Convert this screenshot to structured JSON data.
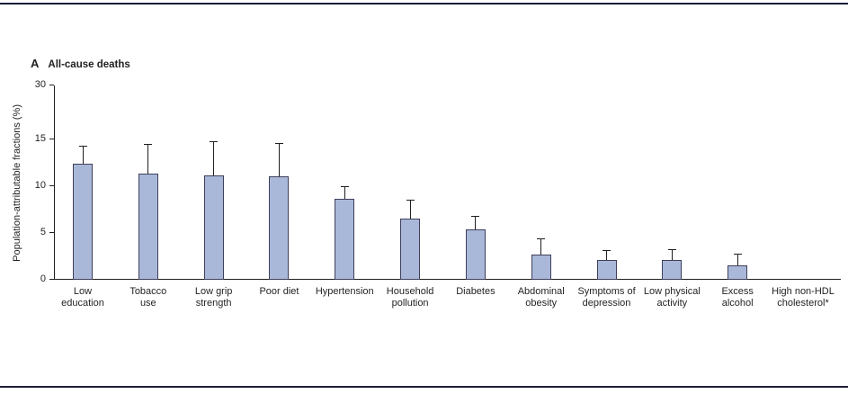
{
  "figure": {
    "panel_label": "A",
    "title": "All-cause deaths",
    "ylabel": "Population-attributable fractions (%)"
  },
  "chart_data": {
    "type": "bar",
    "title": "All-cause deaths",
    "panel": "A",
    "xlabel": "",
    "ylabel": "Population-attributable fractions (%)",
    "yticks": [
      0,
      5,
      10,
      15,
      30
    ],
    "ylim": [
      0,
      30
    ],
    "axis_break": "compressed axis segment between 15 and 30",
    "grid": "off",
    "legend": "none",
    "error_bars": "upper 95% CI whiskers with caps",
    "bars": [
      {
        "category": "Low education",
        "label_lines": [
          "Low",
          "education"
        ],
        "value": 12.4,
        "upper_ci": 14.2
      },
      {
        "category": "Tobacco use",
        "label_lines": [
          "Tobacco",
          "use"
        ],
        "value": 11.3,
        "upper_ci": 14.4
      },
      {
        "category": "Low grip strength",
        "label_lines": [
          "Low grip",
          "strength"
        ],
        "value": 11.2,
        "upper_ci": 14.7
      },
      {
        "category": "Poor diet",
        "label_lines": [
          "Poor diet"
        ],
        "value": 11.1,
        "upper_ci": 14.5
      },
      {
        "category": "Hypertension",
        "label_lines": [
          "Hypertension"
        ],
        "value": 8.7,
        "upper_ci": 9.9
      },
      {
        "category": "Household pollution",
        "label_lines": [
          "Household",
          "pollution"
        ],
        "value": 6.5,
        "upper_ci": 8.5
      },
      {
        "category": "Diabetes",
        "label_lines": [
          "Diabetes"
        ],
        "value": 5.4,
        "upper_ci": 6.7
      },
      {
        "category": "Abdominal obesity",
        "label_lines": [
          "Abdominal",
          "obesity"
        ],
        "value": 2.7,
        "upper_ci": 4.3
      },
      {
        "category": "Symptoms of depression",
        "label_lines": [
          "Symptoms of",
          "depression"
        ],
        "value": 2.1,
        "upper_ci": 3.1
      },
      {
        "category": "Low physical activity",
        "label_lines": [
          "Low physical",
          "activity"
        ],
        "value": 2.1,
        "upper_ci": 3.2
      },
      {
        "category": "Excess alcohol",
        "label_lines": [
          "Excess",
          "alcohol"
        ],
        "value": 1.5,
        "upper_ci": 2.7
      },
      {
        "category": "High non-HDL cholesterol*",
        "label_lines": [
          "High non-HDL",
          "cholesterol*"
        ],
        "value": 0,
        "upper_ci": null
      }
    ],
    "colors": {
      "bar_fill": "#a9b8d9",
      "bar_border": "#3f3f5a",
      "error_bar": "#231f20",
      "axis": "#231f20",
      "rule": "#1c1c3a",
      "text": "#231f20"
    }
  }
}
